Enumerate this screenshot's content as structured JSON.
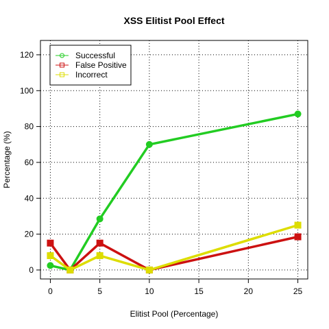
{
  "chart_data": {
    "type": "line",
    "title": "XSS Elitist Pool Effect",
    "xlabel": "Elitist Pool (Percentage)",
    "ylabel": "Percentage (%)",
    "xlim": [
      -1,
      26
    ],
    "ylim": [
      -5,
      128
    ],
    "xticks": [
      0,
      5,
      10,
      15,
      20,
      25
    ],
    "yticks": [
      0,
      20,
      40,
      60,
      80,
      100,
      120
    ],
    "grid": true,
    "legend_position": "top-left",
    "series": [
      {
        "name": "Successful",
        "color": "#22cc22",
        "marker": "circle",
        "x": [
          0,
          2,
          5,
          10,
          25
        ],
        "y": [
          2.5,
          0,
          28.5,
          70,
          87
        ]
      },
      {
        "name": "False Positive",
        "color": "#cc1111",
        "marker": "square",
        "x": [
          0,
          2,
          5,
          10,
          25
        ],
        "y": [
          15,
          0,
          15,
          0,
          18.5
        ]
      },
      {
        "name": "Incorrect",
        "color": "#dddd00",
        "marker": "square",
        "x": [
          0,
          2,
          5,
          10,
          25
        ],
        "y": [
          8,
          0,
          8,
          0,
          25
        ]
      }
    ]
  }
}
